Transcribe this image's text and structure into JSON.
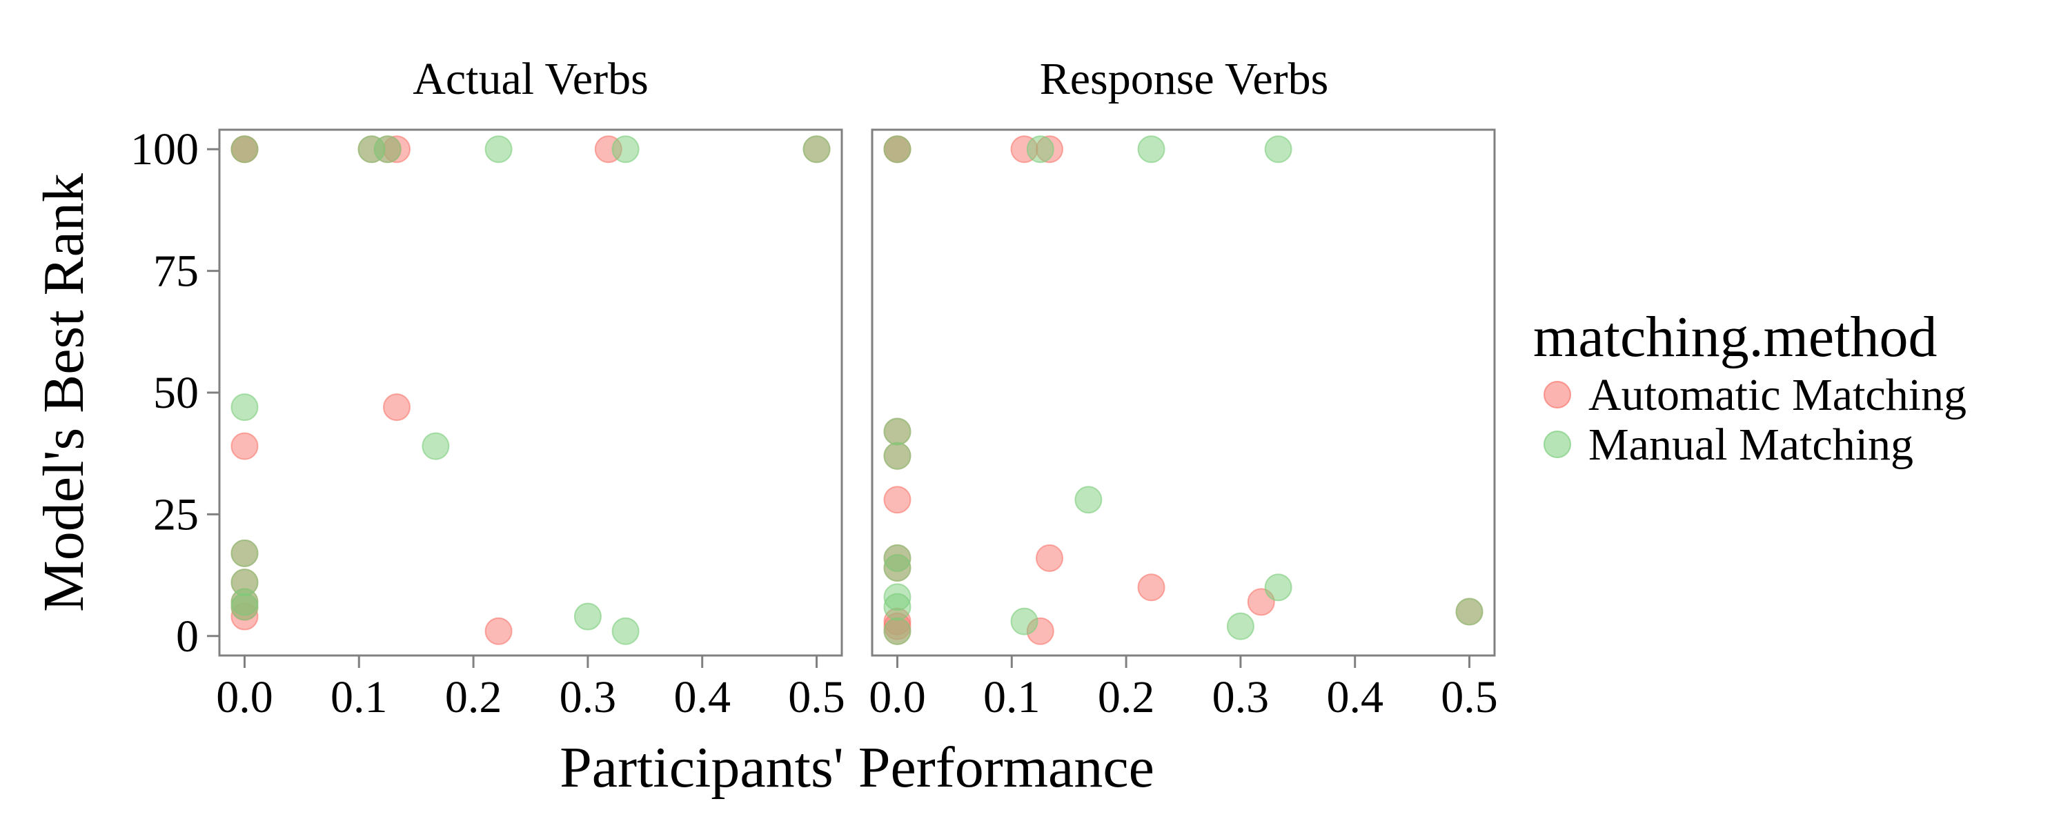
{
  "chart_data": {
    "type": "scatter",
    "facets": [
      "Actual Verbs",
      "Response Verbs"
    ],
    "xlabel": "Participants' Performance",
    "ylabel": "Model's Best Rank",
    "xlim": [
      -0.022,
      0.522
    ],
    "ylim": [
      -4,
      104
    ],
    "xticks": [
      0.0,
      0.1,
      0.2,
      0.3,
      0.4,
      0.5
    ],
    "xtick_labels": [
      "0.0",
      "0.1",
      "0.2",
      "0.3",
      "0.4",
      "0.5"
    ],
    "yticks": [
      0,
      25,
      50,
      75,
      100
    ],
    "ytick_labels": [
      "0",
      "25",
      "50",
      "75",
      "100"
    ],
    "grid": false,
    "legend": {
      "title": "matching.method",
      "position": "right",
      "entries": [
        {
          "label": "Automatic Matching",
          "color": "#F8766D"
        },
        {
          "label": "Manual Matching",
          "color": "#7CCD7C"
        }
      ]
    },
    "series": [
      {
        "name": "Automatic Matching",
        "color": "#F8766D",
        "points": {
          "Actual Verbs": [
            [
              0.0,
              100
            ],
            [
              0.0,
              100
            ],
            [
              0.111,
              100
            ],
            [
              0.125,
              100
            ],
            [
              0.133,
              100
            ],
            [
              0.318,
              100
            ],
            [
              0.5,
              100
            ],
            [
              0.133,
              47
            ],
            [
              0.0,
              39
            ],
            [
              0.0,
              17
            ],
            [
              0.0,
              11
            ],
            [
              0.0,
              7
            ],
            [
              0.0,
              6
            ],
            [
              0.0,
              4
            ],
            [
              0.222,
              1
            ]
          ],
          "Response Verbs": [
            [
              0.0,
              100
            ],
            [
              0.0,
              100
            ],
            [
              0.111,
              100
            ],
            [
              0.133,
              100
            ],
            [
              0.0,
              42
            ],
            [
              0.0,
              37
            ],
            [
              0.0,
              28
            ],
            [
              0.0,
              16
            ],
            [
              0.0,
              14
            ],
            [
              0.0,
              3
            ],
            [
              0.0,
              2
            ],
            [
              0.0,
              1
            ],
            [
              0.133,
              16
            ],
            [
              0.222,
              10
            ],
            [
              0.318,
              7
            ],
            [
              0.125,
              1
            ],
            [
              0.5,
              5
            ]
          ]
        }
      },
      {
        "name": "Manual Matching",
        "color": "#7CCD7C",
        "points": {
          "Actual Verbs": [
            [
              0.0,
              100
            ],
            [
              0.111,
              100
            ],
            [
              0.125,
              100
            ],
            [
              0.222,
              100
            ],
            [
              0.333,
              100
            ],
            [
              0.5,
              100
            ],
            [
              0.0,
              47
            ],
            [
              0.167,
              39
            ],
            [
              0.0,
              17
            ],
            [
              0.0,
              11
            ],
            [
              0.0,
              7
            ],
            [
              0.0,
              6
            ],
            [
              0.3,
              4
            ],
            [
              0.333,
              1
            ]
          ],
          "Response Verbs": [
            [
              0.0,
              100
            ],
            [
              0.125,
              100
            ],
            [
              0.222,
              100
            ],
            [
              0.333,
              100
            ],
            [
              0.0,
              42
            ],
            [
              0.0,
              37
            ],
            [
              0.0,
              16
            ],
            [
              0.0,
              14
            ],
            [
              0.0,
              8
            ],
            [
              0.0,
              6
            ],
            [
              0.0,
              1
            ],
            [
              0.167,
              28
            ],
            [
              0.333,
              10
            ],
            [
              0.111,
              3
            ],
            [
              0.3,
              2
            ],
            [
              0.5,
              5
            ]
          ]
        }
      }
    ]
  }
}
